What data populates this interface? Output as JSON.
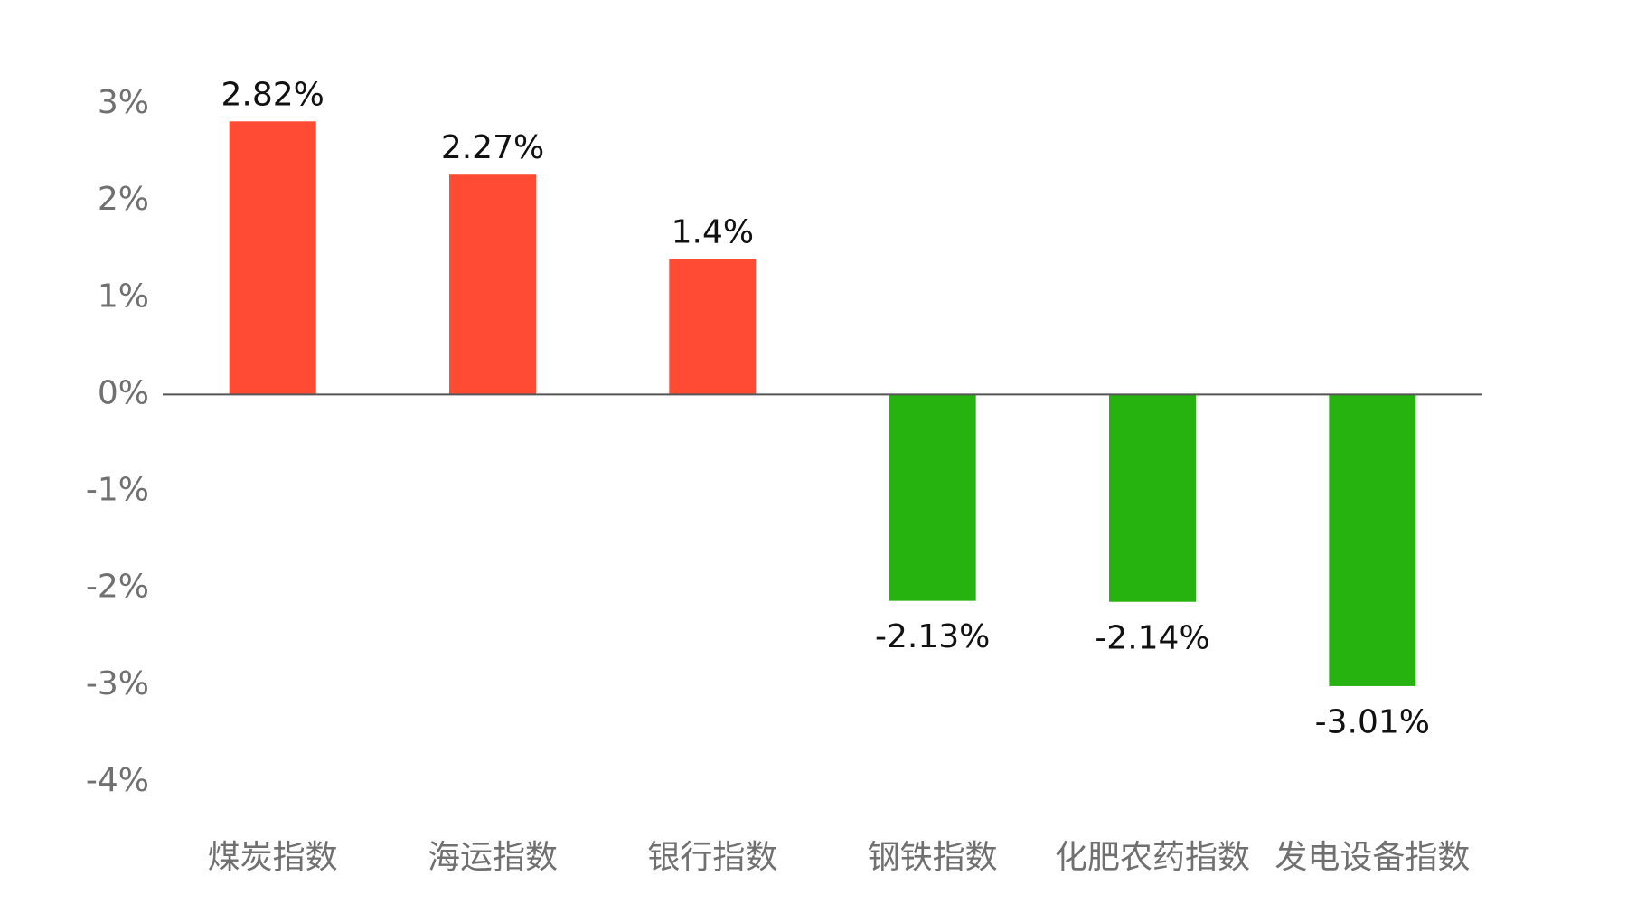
{
  "chart_data": {
    "type": "bar",
    "title": "",
    "xlabel": "",
    "ylabel": "",
    "categories": [
      "煤炭指数",
      "海运指数",
      "银行指数",
      "钢铁指数",
      "化肥农药指数",
      "发电设备指数"
    ],
    "values": [
      2.82,
      2.27,
      1.4,
      -2.13,
      -2.14,
      -3.01
    ],
    "data_labels": [
      "2.82%",
      "2.27%",
      "1.4%",
      "-2.13%",
      "-2.14%",
      "-3.01%"
    ],
    "ylim": [
      -4,
      3
    ],
    "yticks": [
      3,
      2,
      1,
      0,
      -1,
      -2,
      -3,
      -4
    ],
    "ytick_labels": [
      "3%",
      "2%",
      "1%",
      "0%",
      "-1%",
      "-2%",
      "-3%",
      "-4%"
    ],
    "grid": false,
    "legend": "none",
    "colors": {
      "positive": "#ff4b33",
      "negative": "#27b30f",
      "axis": "#555555"
    }
  }
}
